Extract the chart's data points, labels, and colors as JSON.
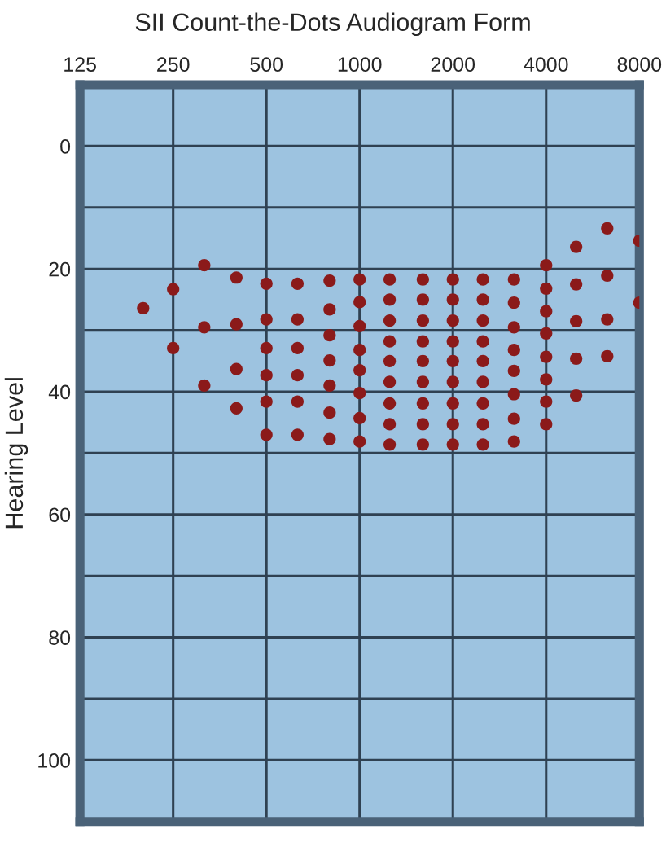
{
  "chart_data": {
    "type": "scatter",
    "title": "SII Count-the-Dots Audiogram Form",
    "ylabel": "Hearing Level",
    "log": "x",
    "grid": true,
    "marker": "circle",
    "legend": false,
    "xlim": [
      125,
      8000
    ],
    "xticks": [
      125,
      250,
      500,
      1000,
      2000,
      4000,
      8000
    ],
    "ylim": [
      110,
      -10
    ],
    "yticks": [
      0,
      {
        "value": 10,
        "label": null
      },
      20,
      {
        "value": 30,
        "label": null
      },
      40,
      {
        "value": 50,
        "label": null
      },
      60,
      {
        "value": 70,
        "label": null
      },
      80,
      {
        "value": 90,
        "label": null
      },
      100
    ],
    "series": [
      {
        "color": "#8b1a1a",
        "x": [
          200,
          250,
          250,
          315,
          315,
          315,
          400,
          400,
          400,
          400,
          500,
          500,
          500,
          500,
          500,
          500,
          630,
          630,
          630,
          630,
          630,
          630,
          800,
          800,
          800,
          800,
          800,
          800,
          800,
          1000,
          1000,
          1000,
          1000,
          1000,
          1000,
          1000,
          1000,
          1250,
          1250,
          1250,
          1250,
          1250,
          1250,
          1250,
          1250,
          1250,
          1600,
          1600,
          1600,
          1600,
          1600,
          1600,
          1600,
          1600,
          1600,
          2000,
          2000,
          2000,
          2000,
          2000,
          2000,
          2000,
          2000,
          2000,
          2500,
          2500,
          2500,
          2500,
          2500,
          2500,
          2500,
          2500,
          2500,
          3150,
          3150,
          3150,
          3150,
          3150,
          3150,
          3150,
          3150,
          4000,
          4000,
          4000,
          4000,
          4000,
          4000,
          4000,
          4000,
          5000,
          5000,
          5000,
          5000,
          5000,
          6300,
          6300,
          6300,
          6300,
          8000,
          8000
        ],
        "values": [
          26.4,
          23.3,
          32.9,
          19.4,
          29.5,
          39,
          21.4,
          29,
          36.3,
          42.7,
          22.4,
          28.2,
          32.9,
          37.3,
          41.6,
          47,
          22.4,
          28.2,
          32.9,
          37.3,
          41.6,
          47,
          21.9,
          26.6,
          30.8,
          34.9,
          39,
          43.4,
          47.7,
          21.7,
          25.4,
          29.3,
          33.2,
          36.5,
          40.2,
          44.3,
          48.1,
          21.7,
          25,
          28.4,
          31.8,
          35,
          38.4,
          41.9,
          45.3,
          48.6,
          21.7,
          25,
          28.4,
          31.8,
          35,
          38.4,
          41.9,
          45.3,
          48.6,
          21.7,
          25,
          28.4,
          31.8,
          35,
          38.4,
          41.9,
          45.3,
          48.6,
          21.7,
          25,
          28.4,
          31.8,
          35,
          38.4,
          41.9,
          45.3,
          48.6,
          21.7,
          25.5,
          29.5,
          33.2,
          36.6,
          40.4,
          44.4,
          48.1,
          19.4,
          23.2,
          26.9,
          30.5,
          34.3,
          38,
          41.6,
          45.3,
          16.4,
          22.5,
          28.5,
          34.6,
          40.6,
          13.4,
          21.1,
          28.2,
          34.2,
          15.4,
          25.5
        ]
      }
    ]
  }
}
